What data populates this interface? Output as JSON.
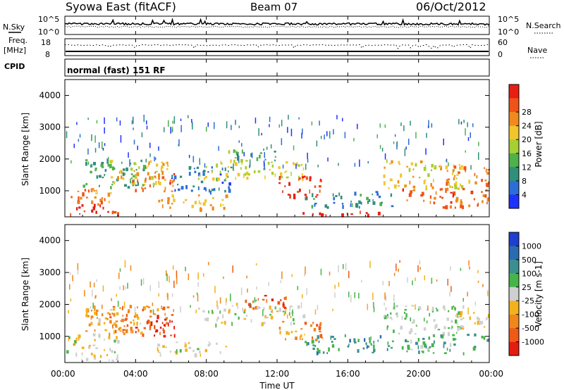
{
  "header": {
    "station": "Syowa East (fitACF)",
    "beam": "Beam 07",
    "date": "06/Oct/2012"
  },
  "noise_panel": {
    "left_label": "N.Sky",
    "right_label": "N.Search",
    "left_ticks": [
      "10^5",
      "10^0"
    ],
    "right_ticks": [
      "10^5",
      "10^0"
    ]
  },
  "freq_panel": {
    "left_label_1": "Freq.",
    "left_label_2": "[MHz]",
    "left_ticks": [
      "18",
      "8"
    ],
    "right_label": "Nave",
    "right_ticks": [
      "60",
      "0"
    ]
  },
  "cpid_panel": {
    "label": "CPID",
    "text": "normal (fast) 151 RF"
  },
  "power_panel": {
    "ylabel": "Slant Range [km]",
    "yticks": [
      "1000",
      "2000",
      "3000",
      "4000"
    ],
    "colorbar_label": "Power [dB]",
    "colorbar_ticks": [
      "4",
      "8",
      "12",
      "16",
      "20",
      "24",
      "28"
    ],
    "colorbar_colors": [
      "#1e32ff",
      "#2d6ed6",
      "#2f8f78",
      "#4eb14a",
      "#a6cf34",
      "#f0c62b",
      "#f08a1c",
      "#ef5317",
      "#e81e12"
    ]
  },
  "velocity_panel": {
    "ylabel": "Slant Range [km]",
    "yticks": [
      "1000",
      "2000",
      "3000",
      "4000"
    ],
    "colorbar_label": "Velocity [m s-1]",
    "colorbar_ticks": [
      "1000",
      "500",
      "100",
      "25",
      "-25",
      "-100",
      "-500",
      "-1000"
    ],
    "colorbar_colors": [
      "#1f3fcf",
      "#2b6bb0",
      "#3c8f8f",
      "#47b44a",
      "#cfcfcf",
      "#f3b21a",
      "#f0871b",
      "#ef5a16",
      "#e51d10"
    ]
  },
  "time_axis": {
    "xlabel": "Time UT",
    "xticks": [
      "00:00",
      "04:00",
      "08:00",
      "12:00",
      "16:00",
      "20:00",
      "00:00"
    ]
  },
  "chart_data": {
    "type": "heatmap",
    "x_range_hours": [
      0,
      24
    ],
    "y_range_km": [
      180,
      4500
    ],
    "panels": [
      {
        "name": "Power",
        "clim": [
          0,
          30
        ],
        "blobs": [
          {
            "t": [
              0.0,
              3.0
            ],
            "r": [
              600,
              1100
            ],
            "v": 22
          },
          {
            "t": [
              0.0,
              3.0
            ],
            "r": [
              250,
              600
            ],
            "v": 28
          },
          {
            "t": [
              1.0,
              4.5
            ],
            "r": [
              1100,
              2000
            ],
            "v": 10
          },
          {
            "t": [
              2.5,
              5.8
            ],
            "r": [
              1200,
              2000
            ],
            "v": 18
          },
          {
            "t": [
              3.8,
              6.3
            ],
            "r": [
              1000,
              1700
            ],
            "v": 24
          },
          {
            "t": [
              5.2,
              9.2
            ],
            "r": [
              450,
              900
            ],
            "v": 20
          },
          {
            "t": [
              6.0,
              9.5
            ],
            "r": [
              1000,
              1800
            ],
            "v": 6
          },
          {
            "t": [
              7.5,
              13.5
            ],
            "r": [
              1400,
              2000
            ],
            "v": 16
          },
          {
            "t": [
              9.2,
              12.0
            ],
            "r": [
              1950,
              2350
            ],
            "v": 12
          },
          {
            "t": [
              12.0,
              14.5
            ],
            "r": [
              800,
              1500
            ],
            "v": 28
          },
          {
            "t": [
              13.0,
              18.0
            ],
            "r": [
              250,
              400
            ],
            "v": 29
          },
          {
            "t": [
              13.5,
              18.5
            ],
            "r": [
              500,
              1000
            ],
            "v": 8
          },
          {
            "t": [
              18.0,
              22.5
            ],
            "r": [
              1100,
              2000
            ],
            "v": 18
          },
          {
            "t": [
              19.0,
              24.0
            ],
            "r": [
              500,
              1100
            ],
            "v": 24
          },
          {
            "t": [
              21.5,
              24.0
            ],
            "r": [
              1200,
              1800
            ],
            "v": 22
          }
        ]
      },
      {
        "name": "Velocity",
        "clim": [
          -1000,
          1000
        ],
        "blobs": [
          {
            "t": [
              0.0,
              3.0
            ],
            "r": [
              600,
              1100
            ],
            "v": -60
          },
          {
            "t": [
              0.0,
              3.0
            ],
            "r": [
              250,
              600
            ],
            "v": -80
          },
          {
            "t": [
              1.0,
              4.5
            ],
            "r": [
              1100,
              2000
            ],
            "v": -300
          },
          {
            "t": [
              2.5,
              5.8
            ],
            "r": [
              1200,
              2000
            ],
            "v": -500
          },
          {
            "t": [
              3.8,
              6.3
            ],
            "r": [
              1000,
              1700
            ],
            "v": -900
          },
          {
            "t": [
              5.2,
              9.2
            ],
            "r": [
              450,
              900
            ],
            "v": -80
          },
          {
            "t": [
              7.5,
              13.5
            ],
            "r": [
              1400,
              2000
            ],
            "v": 0
          },
          {
            "t": [
              9.8,
              12.5
            ],
            "r": [
              1900,
              2300
            ],
            "v": -700
          },
          {
            "t": [
              12.0,
              14.5
            ],
            "r": [
              800,
              1500
            ],
            "v": -400
          },
          {
            "t": [
              13.5,
              18.5
            ],
            "r": [
              500,
              1100
            ],
            "v": 400
          },
          {
            "t": [
              18.0,
              22.5
            ],
            "r": [
              1100,
              2000
            ],
            "v": 120
          },
          {
            "t": [
              19.0,
              24.0
            ],
            "r": [
              500,
              1100
            ],
            "v": 300
          },
          {
            "t": [
              21.5,
              24.0
            ],
            "r": [
              1200,
              1800
            ],
            "v": -80
          }
        ]
      }
    ]
  }
}
